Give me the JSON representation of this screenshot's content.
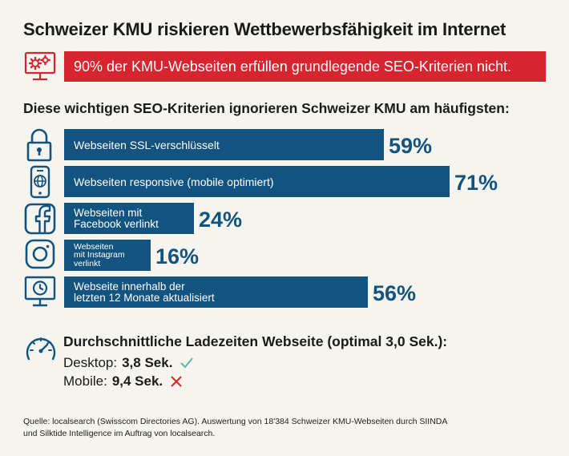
{
  "title": "Schweizer KMU riskieren Wettbewerbsfähigkeit im Internet",
  "banner": "90% der KMU-Webseiten erfüllen grundlegende SEO-Kriterien nicht.",
  "subtitle": "Diese wichtigen SEO-Kriterien ignorieren Schweizer KMU am häufigsten:",
  "chart_data": {
    "type": "bar",
    "orientation": "horizontal",
    "categories": [
      "Webseiten SSL-verschlüsselt",
      "Webseiten responsive (mobile optimiert)",
      "Webseiten mit\nFacebook verlinkt",
      "Webseiten\nmit Instagram\nverlinkt",
      "Webseite innerhalb der\nletzten 12 Monate aktualisiert"
    ],
    "values": [
      59,
      71,
      24,
      16,
      56
    ],
    "value_labels": [
      "59%",
      "71%",
      "24%",
      "16%",
      "56%"
    ],
    "icons": [
      "padlock-icon",
      "smartphone-globe-icon",
      "facebook-icon",
      "instagram-icon",
      "monitor-clock-icon"
    ],
    "unit": "%",
    "xlim": [
      0,
      100
    ],
    "bar_color": "#12537f"
  },
  "loading": {
    "title": "Durchschnittliche Ladezeiten Webseite (optimal 3,0 Sek.):",
    "desktop_label": "Desktop:",
    "desktop_value": "3,8 Sek.",
    "mobile_label": "Mobile:",
    "mobile_value": "9,4 Sek.",
    "icon": "speedometer-icon"
  },
  "source": "Quelle: localsearch (Swisscom Directories AG). Auswertung von 18'384 Schweizer KMU-Webseiten durch SIINDA\nund Silktide Intelligence im Auftrag von localsearch.",
  "colors": {
    "accent_red": "#d8242f",
    "accent_blue": "#12537f",
    "check_green": "#5bb7b0",
    "cross_red": "#d8242f",
    "background": "#f5f4ee"
  }
}
